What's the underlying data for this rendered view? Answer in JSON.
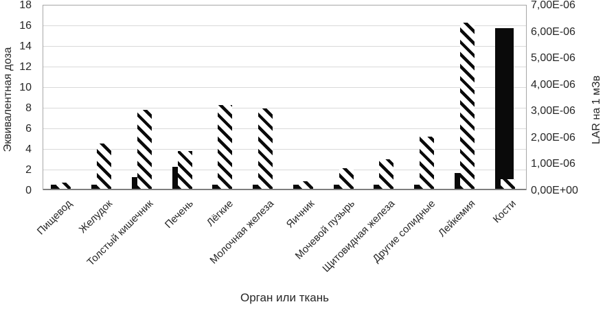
{
  "chart_data": {
    "type": "bar",
    "title": "",
    "xlabel": "Орган или ткань",
    "ylabel_left": "Эквивалентная доза",
    "ylabel_right": "LAR на 1 мЗв",
    "categories": [
      "Пищевод",
      "Желудок",
      "Толстый кишечник",
      "Печень",
      "Лёгкие",
      "Молочная железа",
      "Яичник",
      "Мочевой пузырь",
      "Щитовидная железа",
      "Другие солидные",
      "Лейкемия",
      "Кости"
    ],
    "series": [
      {
        "name": "Эквивалентная доза",
        "axis": "left",
        "pattern": "solid-black",
        "values": [
          0.5,
          0.5,
          1.2,
          2.2,
          0.5,
          0.5,
          0.5,
          0.5,
          0.5,
          0.5,
          1.6,
          15.7
        ]
      },
      {
        "name": "LAR на 1 мЗв",
        "axis": "right",
        "pattern": "diagonal-hatch",
        "unit": "1E-06",
        "values": [
          0.25,
          1.75,
          3.0,
          1.45,
          3.2,
          3.05,
          0.3,
          0.8,
          1.15,
          2.0,
          6.3,
          0.4
        ]
      }
    ],
    "left_axis": {
      "min": 0,
      "max": 18,
      "step": 2,
      "ticks": [
        "0",
        "2",
        "4",
        "6",
        "8",
        "10",
        "12",
        "14",
        "16",
        "18"
      ]
    },
    "right_axis": {
      "min": 0,
      "max": 7,
      "step": 1,
      "unit": "1E-06",
      "ticks": [
        "0,00E+00",
        "1,00E-06",
        "2,00E-06",
        "3,00E-06",
        "4,00E-06",
        "5,00E-06",
        "6,00E-06",
        "7,00E-06"
      ]
    },
    "grid": true,
    "legend_visible": false,
    "colors": {
      "bar": "#0a0a0a",
      "gridline": "#d9d9d9",
      "axis_line": "#7f7f7f",
      "plot_border": "#a6a6a6",
      "text": "#262626"
    }
  }
}
